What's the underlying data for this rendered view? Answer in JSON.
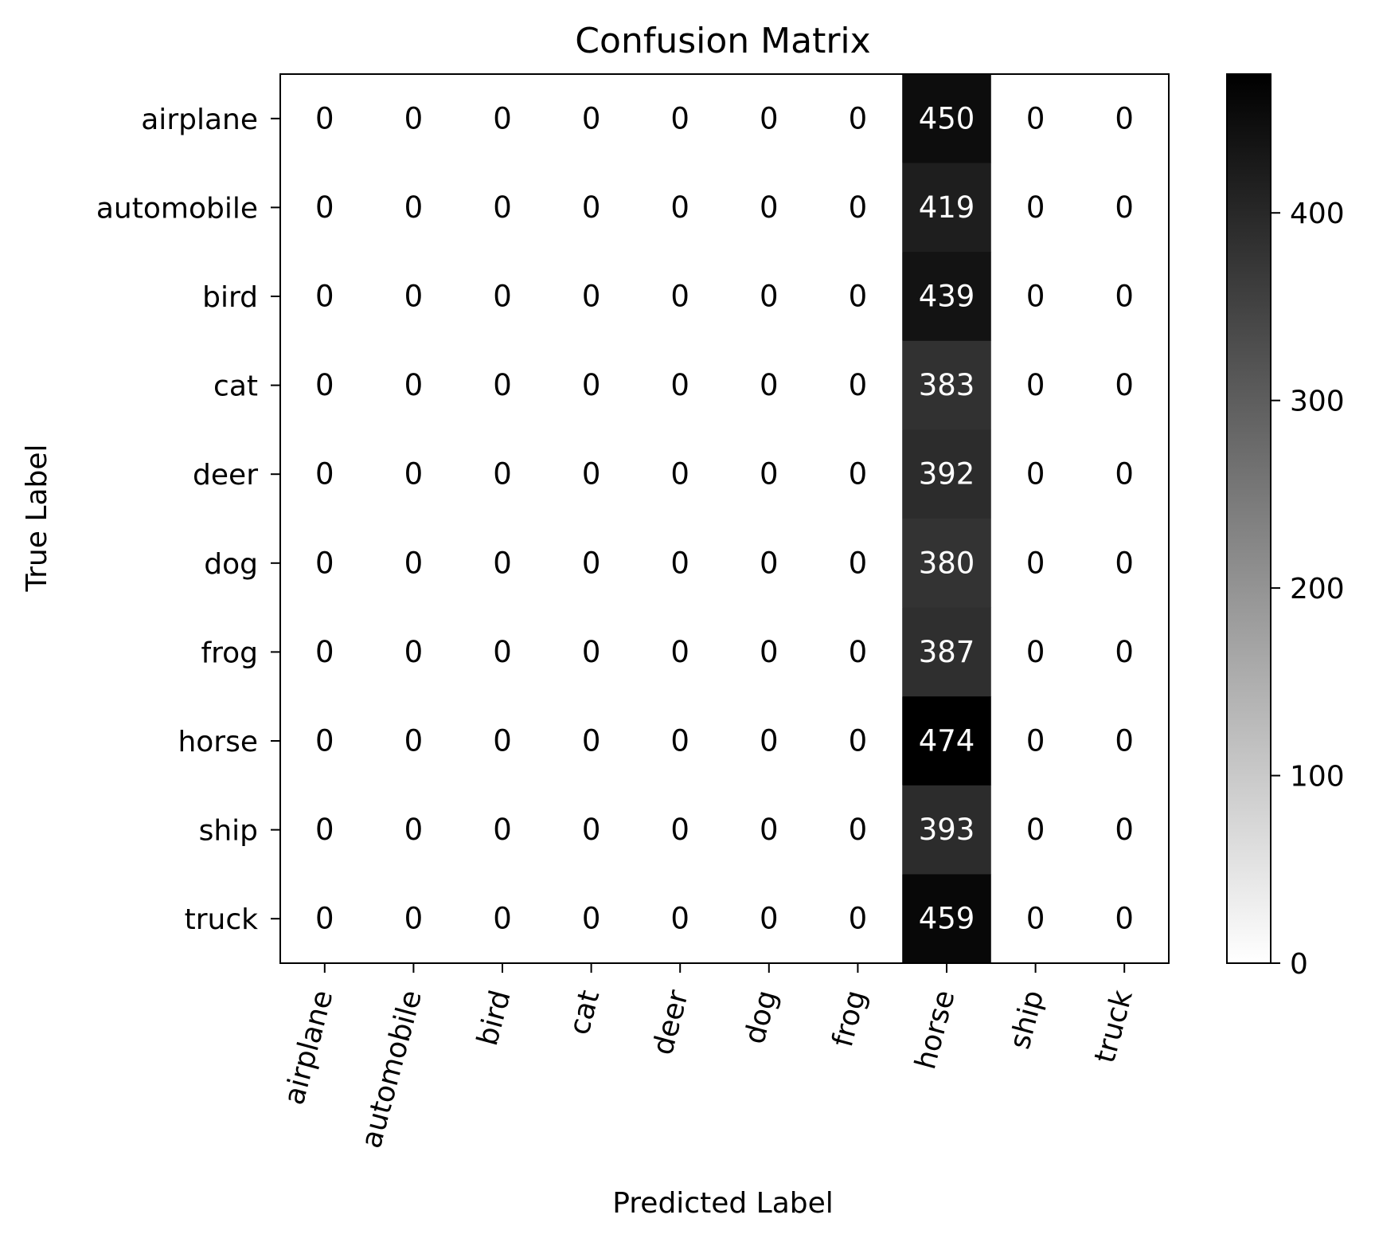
{
  "chart_data": {
    "type": "heatmap",
    "title": "Confusion Matrix",
    "xlabel": "Predicted Label",
    "ylabel": "True Label",
    "x_categories": [
      "airplane",
      "automobile",
      "bird",
      "cat",
      "deer",
      "dog",
      "frog",
      "horse",
      "ship",
      "truck"
    ],
    "y_categories": [
      "airplane",
      "automobile",
      "bird",
      "cat",
      "deer",
      "dog",
      "frog",
      "horse",
      "ship",
      "truck"
    ],
    "values": [
      [
        0,
        0,
        0,
        0,
        0,
        0,
        0,
        450,
        0,
        0
      ],
      [
        0,
        0,
        0,
        0,
        0,
        0,
        0,
        419,
        0,
        0
      ],
      [
        0,
        0,
        0,
        0,
        0,
        0,
        0,
        439,
        0,
        0
      ],
      [
        0,
        0,
        0,
        0,
        0,
        0,
        0,
        383,
        0,
        0
      ],
      [
        0,
        0,
        0,
        0,
        0,
        0,
        0,
        392,
        0,
        0
      ],
      [
        0,
        0,
        0,
        0,
        0,
        0,
        0,
        380,
        0,
        0
      ],
      [
        0,
        0,
        0,
        0,
        0,
        0,
        0,
        387,
        0,
        0
      ],
      [
        0,
        0,
        0,
        0,
        0,
        0,
        0,
        474,
        0,
        0
      ],
      [
        0,
        0,
        0,
        0,
        0,
        0,
        0,
        393,
        0,
        0
      ],
      [
        0,
        0,
        0,
        0,
        0,
        0,
        0,
        459,
        0,
        0
      ]
    ],
    "colormap": "greys",
    "color_range": [
      0,
      474
    ],
    "colorbar": {
      "ticks": [
        0,
        100,
        200,
        300,
        400
      ],
      "tick_labels": [
        "0",
        "100",
        "200",
        "300",
        "400"
      ]
    },
    "grid": false
  }
}
